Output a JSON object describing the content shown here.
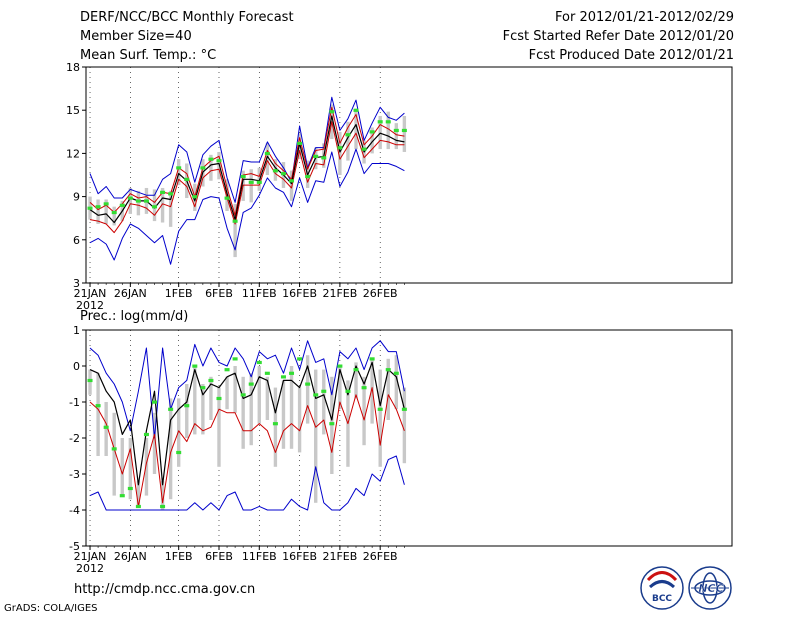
{
  "header": {
    "title": "DERF/NCC/BCC Monthly Forecast",
    "member_size": "Member Size=40",
    "variable": "Mean Surf. Temp.: °C",
    "forecast_period": "For 2012/01/21-2012/02/29",
    "start_date": "Fcst Started Refer Date 2012/01/20",
    "produced_date": "Fcst Produced Date 2012/01/21"
  },
  "footer": {
    "url": "http://cmdp.ncc.cma.gov.cn",
    "grads": "GrADS: COLA/IGES",
    "logo_bcc": "BCC",
    "logo_ncc": "NCC"
  },
  "colors": {
    "box": "#c8c8c8",
    "median": "#33dd33",
    "max": "#0000cc",
    "min": "#0000cc",
    "upper": "#cc0000",
    "lower": "#cc0000",
    "mean": "#000000",
    "axis": "#000000",
    "grid": "#000000"
  },
  "chart_data": [
    {
      "type": "line",
      "title": "Mean Surf. Temp.: °C",
      "x_ticks": [
        "21JAN",
        "26JAN",
        "1FEB",
        "6FEB",
        "11FEB",
        "16FEB",
        "21FEB",
        "26FEB"
      ],
      "x_tick_days": [
        1,
        6,
        12,
        17,
        22,
        27,
        32,
        37
      ],
      "x_year_label": "2012",
      "ylim": [
        3,
        18
      ],
      "y_ticks": [
        3,
        6,
        9,
        12,
        15,
        18
      ],
      "days": [
        1,
        2,
        3,
        4,
        5,
        6,
        7,
        8,
        9,
        10,
        11,
        12,
        13,
        14,
        15,
        16,
        17,
        18,
        19,
        20,
        21,
        22,
        23,
        24,
        25,
        26,
        27,
        28,
        29,
        30,
        31,
        32,
        33,
        34,
        35,
        36,
        37,
        38,
        39,
        40
      ],
      "max": [
        10.6,
        9.2,
        9.7,
        8.9,
        8.9,
        9.5,
        9.3,
        9.1,
        9.1,
        10.2,
        10.6,
        12.6,
        12.1,
        10.0,
        11.9,
        12.5,
        12.9,
        10.3,
        8.6,
        11.5,
        11.4,
        11.4,
        12.8,
        11.8,
        11.0,
        10.0,
        13.9,
        11.0,
        12.4,
        12.4,
        15.9,
        13.6,
        14.4,
        15.7,
        12.9,
        14.1,
        15.2,
        14.5,
        14.3,
        14.8
      ],
      "upper": [
        8.6,
        8.1,
        8.4,
        7.9,
        8.5,
        9.2,
        8.9,
        9.0,
        8.6,
        9.3,
        9.2,
        11.0,
        10.6,
        9.0,
        11.0,
        11.5,
        11.8,
        9.6,
        7.7,
        10.5,
        10.6,
        10.4,
        12.2,
        11.3,
        10.8,
        10.2,
        13.1,
        10.9,
        12.2,
        12.3,
        15.2,
        12.7,
        13.8,
        14.7,
        12.6,
        13.2,
        14.0,
        13.7,
        13.3,
        13.2
      ],
      "mean": [
        8.1,
        7.7,
        7.8,
        7.2,
        8.0,
        8.9,
        8.7,
        8.7,
        8.2,
        8.9,
        8.8,
        10.6,
        10.1,
        8.7,
        10.7,
        11.2,
        11.3,
        9.2,
        7.4,
        10.2,
        10.2,
        10.1,
        11.8,
        11.0,
        10.5,
        9.9,
        12.7,
        10.5,
        11.7,
        11.8,
        14.6,
        12.1,
        13.1,
        14.0,
        12.1,
        12.8,
        13.4,
        13.2,
        12.9,
        12.8
      ],
      "lower": [
        7.4,
        7.3,
        7.1,
        6.5,
        7.3,
        8.5,
        8.4,
        8.2,
        7.7,
        8.5,
        8.3,
        10.2,
        9.7,
        8.3,
        10.3,
        10.8,
        10.9,
        8.9,
        7.1,
        9.8,
        9.8,
        9.8,
        11.5,
        10.6,
        10.2,
        9.6,
        12.2,
        10.0,
        11.3,
        11.2,
        14.2,
        11.6,
        12.5,
        13.4,
        11.7,
        12.3,
        12.9,
        12.8,
        12.6,
        12.6
      ],
      "min": [
        5.8,
        6.1,
        5.7,
        4.6,
        6.1,
        7.1,
        6.8,
        6.3,
        5.8,
        6.3,
        4.3,
        6.6,
        7.4,
        7.4,
        8.8,
        9.0,
        8.9,
        6.8,
        5.3,
        7.9,
        8.2,
        9.1,
        10.3,
        9.6,
        9.3,
        8.3,
        10.3,
        8.6,
        10.1,
        10.0,
        12.1,
        9.7,
        10.7,
        12.3,
        10.6,
        11.3,
        11.3,
        11.3,
        11.1,
        10.8
      ],
      "box_high": [
        9.0,
        8.8,
        8.8,
        8.3,
        8.7,
        9.6,
        9.4,
        9.6,
        9.5,
        9.6,
        9.4,
        11.6,
        11.3,
        9.9,
        11.6,
        11.9,
        12.1,
        10.2,
        8.5,
        10.8,
        10.9,
        11.0,
        12.7,
        11.6,
        11.4,
        10.8,
        13.4,
        11.5,
        12.4,
        12.7,
        15.4,
        13.5,
        14.2,
        15.1,
        12.9,
        13.8,
        14.6,
        14.9,
        14.1,
        14.6
      ],
      "box_low": [
        7.4,
        7.1,
        7.1,
        7.0,
        7.3,
        7.8,
        7.7,
        7.8,
        7.3,
        7.2,
        6.9,
        9.8,
        8.9,
        8.0,
        9.7,
        10.1,
        10.2,
        8.0,
        4.8,
        8.7,
        8.6,
        9.4,
        10.5,
        10.1,
        9.6,
        8.7,
        11.6,
        9.6,
        10.9,
        11.0,
        13.0,
        10.5,
        11.5,
        12.3,
        11.3,
        12.0,
        12.3,
        12.3,
        12.3,
        12.1
      ],
      "median": [
        8.2,
        8.3,
        8.5,
        7.9,
        8.4,
        8.9,
        8.7,
        8.7,
        8.3,
        9.3,
        9.2,
        11.0,
        10.2,
        9.0,
        11.0,
        11.6,
        11.5,
        8.9,
        7.3,
        10.4,
        10.0,
        10.0,
        12.0,
        10.8,
        10.6,
        10.1,
        12.7,
        10.4,
        11.8,
        11.7,
        14.9,
        12.4,
        13.3,
        15.0,
        12.3,
        13.5,
        14.2,
        14.2,
        13.6,
        13.6
      ]
    },
    {
      "type": "line",
      "title": "Prec.: log(mm/d)",
      "x_ticks": [
        "21JAN",
        "26JAN",
        "1FEB",
        "6FEB",
        "11FEB",
        "16FEB",
        "21FEB",
        "26FEB"
      ],
      "x_tick_days": [
        1,
        6,
        12,
        17,
        22,
        27,
        32,
        37
      ],
      "x_year_label": "2012",
      "ylim": [
        -5,
        1
      ],
      "y_ticks": [
        -5,
        -4,
        -3,
        -2,
        -1,
        0,
        1
      ],
      "days": [
        1,
        2,
        3,
        4,
        5,
        6,
        7,
        8,
        9,
        10,
        11,
        12,
        13,
        14,
        15,
        16,
        17,
        18,
        19,
        20,
        21,
        22,
        23,
        24,
        25,
        26,
        27,
        28,
        29,
        30,
        31,
        32,
        33,
        34,
        35,
        36,
        37,
        38,
        39,
        40
      ],
      "max": [
        0.5,
        0.3,
        -0.2,
        -0.5,
        -1.0,
        -1.8,
        -0.7,
        0.5,
        -2.0,
        0.5,
        -1.2,
        -0.6,
        -0.4,
        0.6,
        0.0,
        0.5,
        0.1,
        0.0,
        0.5,
        0.2,
        -0.3,
        0.4,
        0.2,
        0.3,
        -0.2,
        0.5,
        -0.1,
        0.7,
        0.1,
        0.2,
        -0.8,
        0.4,
        0.2,
        0.5,
        -0.1,
        0.5,
        0.7,
        0.4,
        0.4,
        -0.7
      ],
      "mean": [
        -0.1,
        -0.2,
        -0.7,
        -1.0,
        -1.9,
        -1.5,
        -3.3,
        -1.8,
        -0.7,
        -3.3,
        -1.5,
        -1.2,
        -1.0,
        -0.1,
        -0.8,
        -0.5,
        -0.6,
        -0.3,
        -0.2,
        -0.9,
        -0.8,
        -0.3,
        -0.4,
        -1.3,
        -0.4,
        -0.4,
        -0.6,
        0.0,
        -0.9,
        -0.8,
        -1.5,
        -0.1,
        -0.8,
        0.0,
        -0.5,
        0.1,
        -1.1,
        -0.1,
        -0.3,
        -1.2
      ],
      "lower": [
        -1.0,
        -1.2,
        -1.6,
        -2.3,
        -3.0,
        -2.3,
        -3.9,
        -2.7,
        -1.9,
        -3.8,
        -2.4,
        -1.8,
        -2.1,
        -1.6,
        -1.8,
        -1.7,
        -1.2,
        -1.3,
        -1.3,
        -1.8,
        -1.8,
        -1.6,
        -1.8,
        -2.4,
        -1.8,
        -1.6,
        -1.8,
        -1.1,
        -1.7,
        -1.5,
        -2.4,
        -1.0,
        -1.6,
        -0.8,
        -1.5,
        -0.6,
        -2.2,
        -0.8,
        -1.2,
        -1.8
      ],
      "min": [
        -3.6,
        -3.5,
        -4.0,
        -4.0,
        -4.0,
        -4.0,
        -4.0,
        -4.0,
        -4.0,
        -4.0,
        -4.0,
        -4.0,
        -4.0,
        -3.8,
        -4.0,
        -3.8,
        -4.0,
        -3.6,
        -3.5,
        -4.0,
        -4.0,
        -3.9,
        -4.0,
        -4.0,
        -4.0,
        -3.7,
        -3.9,
        -4.0,
        -2.8,
        -3.8,
        -4.0,
        -4.0,
        -3.8,
        -3.4,
        -3.6,
        -3.0,
        -3.2,
        -2.6,
        -2.5,
        -3.3
      ],
      "box_high": [
        -0.1,
        -0.2,
        -1.0,
        -1.3,
        -2.0,
        -2.0,
        -3.2,
        -2.0,
        -1.3,
        -3.2,
        -0.9,
        -0.9,
        -0.5,
        0.0,
        -0.5,
        -0.3,
        -0.6,
        -0.3,
        0.0,
        -0.3,
        -0.2,
        0.0,
        -0.3,
        -0.6,
        -0.4,
        0.0,
        -0.6,
        0.3,
        -0.1,
        -0.1,
        -0.3,
        0.0,
        -0.4,
        0.1,
        -0.3,
        0.2,
        -0.1,
        0.2,
        0.3,
        -0.6
      ],
      "box_low": [
        -0.8,
        -2.5,
        -2.5,
        -3.6,
        -3.6,
        -3.7,
        -3.9,
        -3.6,
        -3.0,
        -4.0,
        -3.7,
        -2.8,
        -2.0,
        -1.9,
        -1.9,
        -1.5,
        -2.8,
        -1.2,
        -1.3,
        -2.3,
        -2.2,
        -1.6,
        -1.5,
        -2.8,
        -2.3,
        -2.3,
        -2.4,
        -1.6,
        -3.8,
        -1.9,
        -3.0,
        -1.2,
        -2.8,
        -0.9,
        -2.2,
        -1.6,
        -2.8,
        -1.5,
        -1.2,
        -2.7
      ],
      "median": [
        -0.4,
        -1.1,
        -1.7,
        -2.3,
        -3.6,
        -3.4,
        -3.9,
        -1.9,
        -1.0,
        -3.9,
        -1.2,
        -2.4,
        -1.1,
        0.0,
        -0.6,
        -0.4,
        -0.9,
        -0.1,
        0.2,
        -0.8,
        -0.5,
        0.1,
        -0.2,
        -1.6,
        -0.3,
        -0.2,
        0.2,
        -0.5,
        -0.8,
        -0.7,
        -1.6,
        0.0,
        -0.7,
        -0.1,
        -0.6,
        0.2,
        -1.2,
        -0.1,
        -0.2,
        -1.2
      ]
    }
  ]
}
